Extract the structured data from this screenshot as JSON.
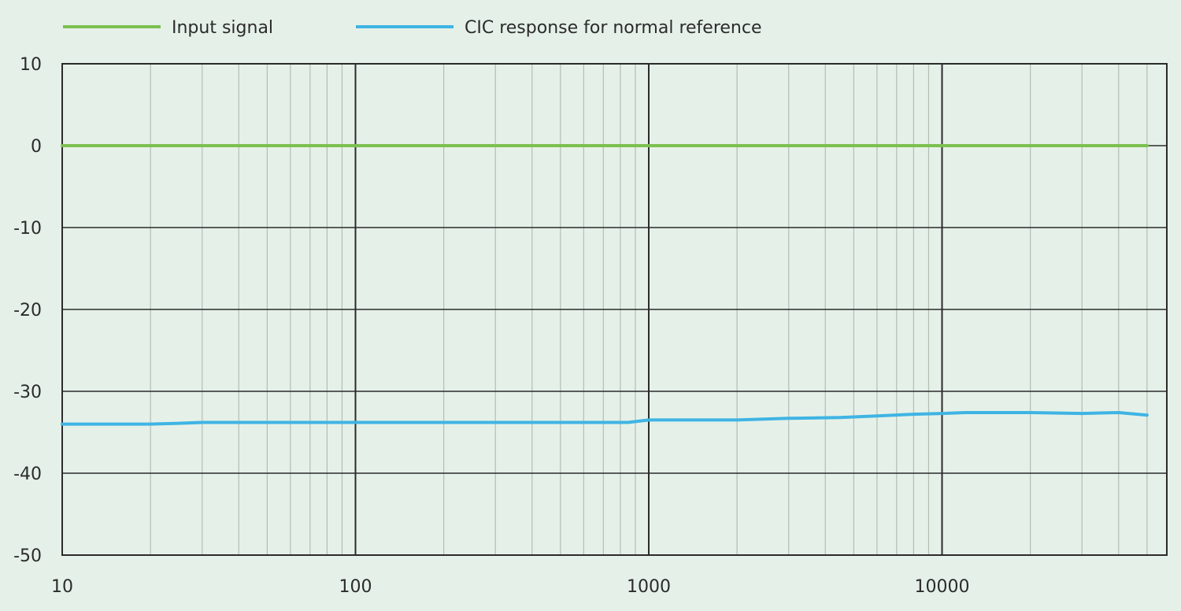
{
  "chart_data": {
    "type": "line",
    "title": "",
    "xlabel": "",
    "ylabel": "",
    "x_scale": "log",
    "xlim": [
      10,
      50000
    ],
    "ylim": [
      -50,
      10
    ],
    "grid": true,
    "legend_position": "top-left",
    "x_ticks": [
      10,
      100,
      1000,
      10000
    ],
    "x_tick_labels": [
      "10",
      "100",
      "1000",
      "10000"
    ],
    "y_ticks": [
      10,
      0,
      -10,
      -20,
      -30,
      -40,
      -50
    ],
    "y_tick_labels": [
      "10",
      "0",
      "-10",
      "-20",
      "-30",
      "-40",
      "-50"
    ],
    "series": [
      {
        "name": "Input signal",
        "color": "#7cc04f",
        "points": [
          [
            10,
            0
          ],
          [
            50000,
            0
          ]
        ]
      },
      {
        "name": "CIC response for normal reference",
        "color": "#3fb4e4",
        "points": [
          [
            10,
            -34.0
          ],
          [
            20,
            -34.0
          ],
          [
            25,
            -33.9
          ],
          [
            30,
            -33.8
          ],
          [
            50,
            -33.8
          ],
          [
            100,
            -33.8
          ],
          [
            200,
            -33.8
          ],
          [
            500,
            -33.8
          ],
          [
            850,
            -33.8
          ],
          [
            1000,
            -33.5
          ],
          [
            2000,
            -33.5
          ],
          [
            3000,
            -33.3
          ],
          [
            4500,
            -33.2
          ],
          [
            6000,
            -33.0
          ],
          [
            8000,
            -32.8
          ],
          [
            10000,
            -32.7
          ],
          [
            12000,
            -32.6
          ],
          [
            20000,
            -32.6
          ],
          [
            30000,
            -32.7
          ],
          [
            40000,
            -32.6
          ],
          [
            50000,
            -32.9
          ]
        ]
      }
    ]
  }
}
